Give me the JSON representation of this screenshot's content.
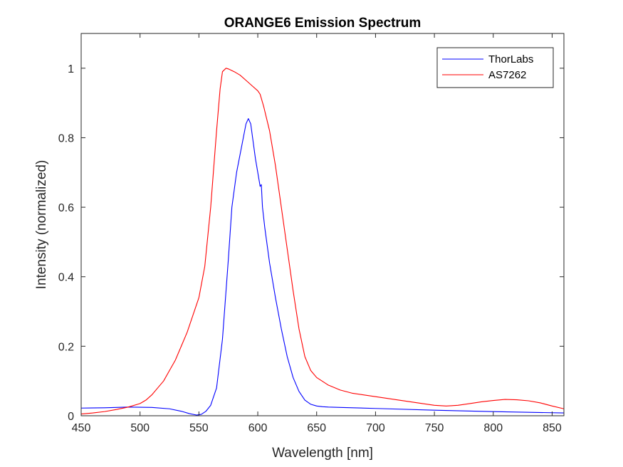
{
  "chart_data": {
    "type": "line",
    "title": "ORANGE6 Emission Spectrum",
    "xlabel": "Wavelength [nm]",
    "ylabel": "Intensity (normalized)",
    "xlim": [
      450,
      860
    ],
    "ylim": [
      0,
      1.1
    ],
    "xticks": [
      450,
      500,
      550,
      600,
      650,
      700,
      750,
      800,
      850
    ],
    "yticks": [
      0,
      0.2,
      0.4,
      0.6,
      0.8,
      1
    ],
    "ytick_labels": [
      "0",
      "0.2",
      "0.4",
      "0.6",
      "0.8",
      "1"
    ],
    "grid": false,
    "legend_position": "top-right",
    "series": [
      {
        "name": "ThorLabs",
        "color": "#0000ff",
        "x": [
          450,
          470,
          490,
          510,
          525,
          535,
          542,
          548,
          552,
          556,
          560,
          565,
          570,
          575,
          578,
          582,
          586,
          590,
          592,
          594,
          596,
          598,
          600,
          602,
          603,
          604,
          606,
          610,
          615,
          620,
          625,
          630,
          635,
          640,
          645,
          650,
          655,
          660,
          670,
          700,
          750,
          800,
          860
        ],
        "y": [
          0.022,
          0.023,
          0.025,
          0.024,
          0.02,
          0.013,
          0.006,
          0.002,
          0.004,
          0.013,
          0.03,
          0.08,
          0.22,
          0.45,
          0.6,
          0.7,
          0.77,
          0.84,
          0.855,
          0.84,
          0.79,
          0.74,
          0.7,
          0.66,
          0.665,
          0.6,
          0.54,
          0.44,
          0.34,
          0.25,
          0.17,
          0.11,
          0.07,
          0.045,
          0.033,
          0.028,
          0.026,
          0.025,
          0.024,
          0.021,
          0.016,
          0.012,
          0.008
        ]
      },
      {
        "name": "AS7262",
        "color": "#ff0000",
        "x": [
          450,
          460,
          470,
          480,
          490,
          500,
          505,
          510,
          515,
          520,
          525,
          530,
          535,
          540,
          545,
          550,
          555,
          560,
          565,
          568,
          570,
          573,
          575,
          580,
          585,
          590,
          595,
          600,
          602,
          605,
          610,
          615,
          620,
          625,
          630,
          635,
          640,
          645,
          650,
          660,
          670,
          680,
          700,
          720,
          740,
          750,
          760,
          770,
          780,
          790,
          800,
          810,
          820,
          830,
          840,
          850,
          860
        ],
        "y": [
          0.005,
          0.008,
          0.012,
          0.018,
          0.025,
          0.035,
          0.045,
          0.06,
          0.08,
          0.1,
          0.13,
          0.16,
          0.2,
          0.24,
          0.29,
          0.34,
          0.43,
          0.6,
          0.82,
          0.94,
          0.99,
          1.0,
          0.998,
          0.99,
          0.98,
          0.965,
          0.95,
          0.935,
          0.925,
          0.89,
          0.82,
          0.72,
          0.6,
          0.48,
          0.36,
          0.25,
          0.17,
          0.13,
          0.11,
          0.088,
          0.074,
          0.065,
          0.055,
          0.045,
          0.035,
          0.03,
          0.028,
          0.03,
          0.035,
          0.04,
          0.044,
          0.047,
          0.046,
          0.043,
          0.037,
          0.028,
          0.02
        ]
      }
    ]
  }
}
